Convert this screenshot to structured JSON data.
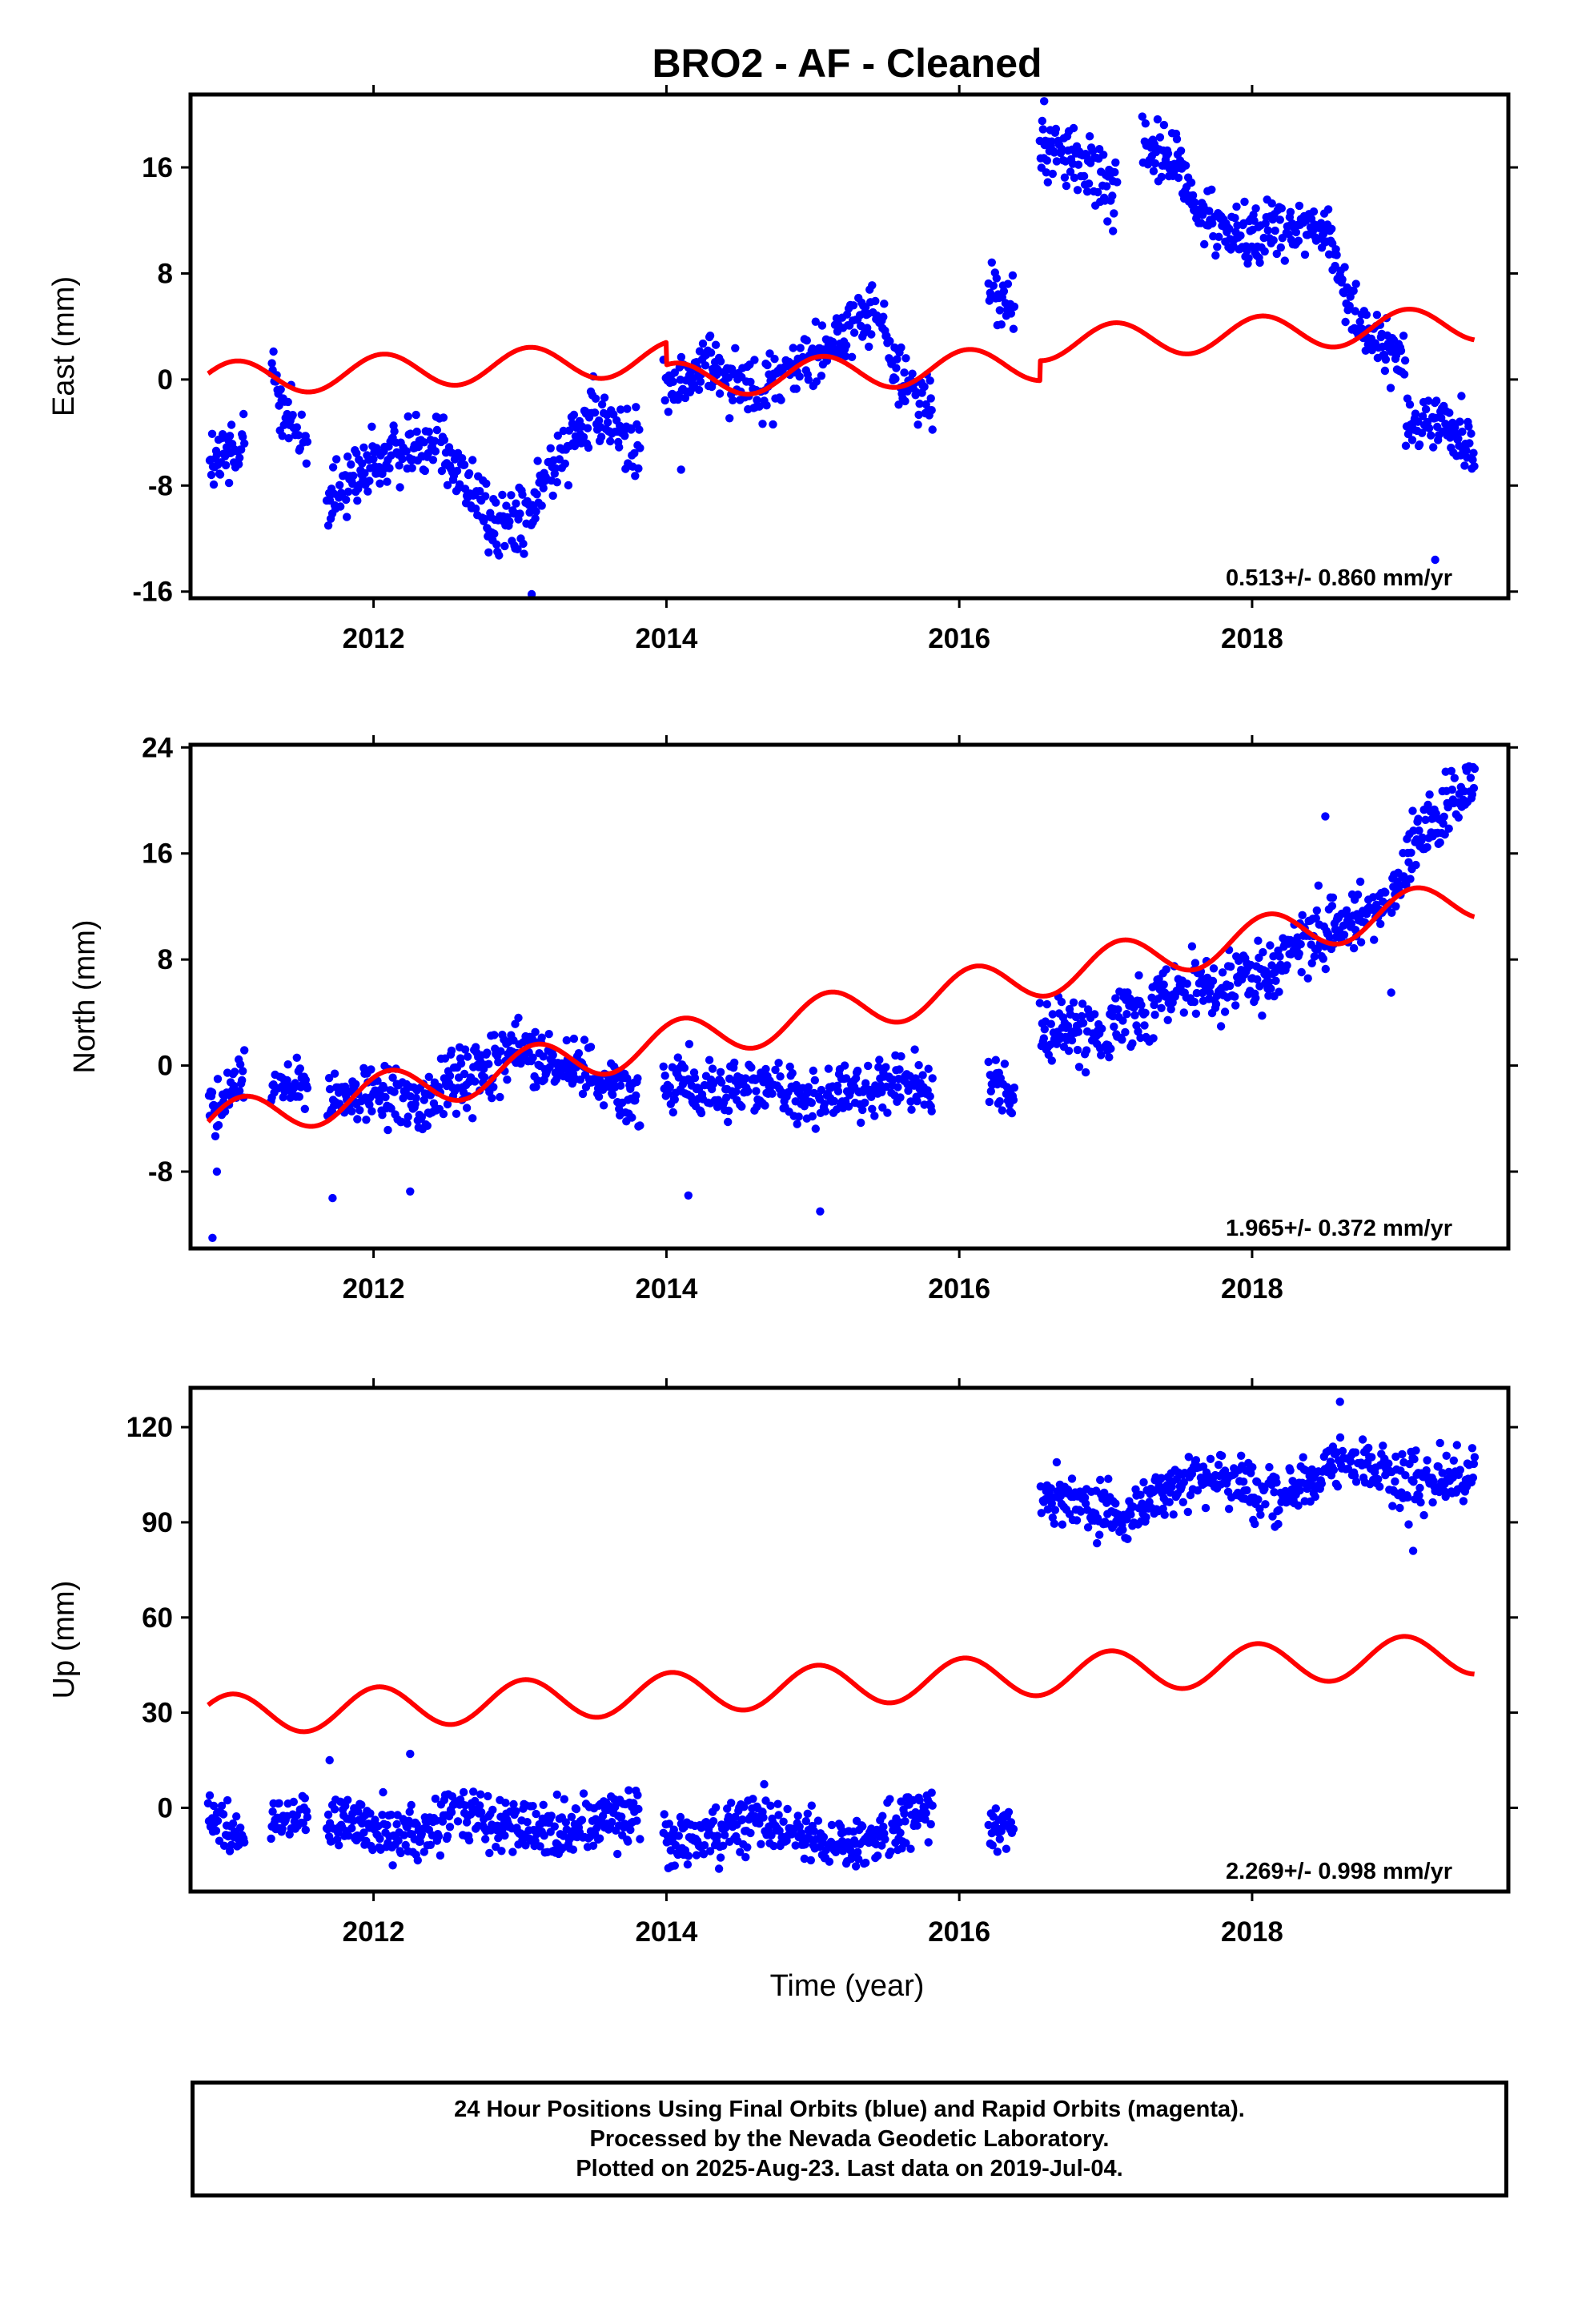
{
  "title": "BRO2  - AF - Cleaned",
  "xlabel": "Time (year)",
  "footer": {
    "line1": "24 Hour Positions Using Final Orbits (blue) and Rapid Orbits (magenta).",
    "line2": "Processed by the Nevada Geodetic Laboratory.",
    "line3": "Plotted on 2025-Aug-23. Last data on 2019-Jul-04."
  },
  "colors": {
    "data": "#0000ff",
    "model": "#ff0000",
    "frame": "#000000"
  },
  "chart_data": [
    {
      "type": "scatter",
      "panel": "east",
      "ylabel": "East (mm)",
      "xlim": [
        2010.75,
        2019.75
      ],
      "ylim": [
        -16.5,
        21.5
      ],
      "xticks": [
        2012,
        2014,
        2016,
        2018
      ],
      "yticks": [
        -16,
        -8,
        0,
        8,
        16
      ],
      "ytick_labels": [
        "-16",
        "-8",
        "0",
        "8",
        "16"
      ],
      "rate": "0.513+/- 0.860 mm/yr",
      "model": {
        "offset": 0.0,
        "trend": 0.513,
        "amplitude": 1.3,
        "phase": 0.35,
        "steps": [
          [
            2014.0,
            -1.7
          ],
          [
            2016.55,
            1.5
          ]
        ]
      },
      "segments": [
        {
          "start": 2010.87,
          "end": 2011.12,
          "points": [
            [
              2010.87,
              -6.5
            ],
            [
              2011.0,
              -5.8
            ],
            [
              2011.12,
              -3.8
            ]
          ],
          "noise": 1.3
        },
        {
          "start": 2011.3,
          "end": 2011.55,
          "points": [
            [
              2011.3,
              0.5
            ],
            [
              2011.42,
              -2.8
            ],
            [
              2011.55,
              -5.5
            ]
          ],
          "noise": 1.3
        },
        {
          "start": 2011.68,
          "end": 2013.82,
          "points": [
            [
              2011.68,
              -9.5
            ],
            [
              2012.0,
              -6.5
            ],
            [
              2012.3,
              -4.8
            ],
            [
              2012.45,
              -4.0
            ],
            [
              2012.6,
              -7.5
            ],
            [
              2012.85,
              -11.0
            ],
            [
              2013.05,
              -10.8
            ],
            [
              2013.2,
              -7.0
            ],
            [
              2013.4,
              -3.0
            ],
            [
              2013.6,
              -3.5
            ],
            [
              2013.82,
              -5.2
            ]
          ],
          "noise": 1.3
        },
        {
          "start": 2013.98,
          "end": 2015.82,
          "points": [
            [
              2013.98,
              -1.0
            ],
            [
              2014.3,
              1.2
            ],
            [
              2014.6,
              -0.8
            ],
            [
              2014.9,
              0.8
            ],
            [
              2015.2,
              3.5
            ],
            [
              2015.42,
              5.5
            ],
            [
              2015.6,
              0.2
            ],
            [
              2015.82,
              -2.3
            ]
          ],
          "noise": 1.1
        },
        {
          "start": 2016.2,
          "end": 2016.38,
          "points": [
            [
              2016.2,
              7.0
            ],
            [
              2016.38,
              5.0
            ]
          ],
          "noise": 1.0
        },
        {
          "start": 2016.55,
          "end": 2017.08,
          "points": [
            [
              2016.55,
              18.0
            ],
            [
              2016.8,
              16.5
            ],
            [
              2017.08,
              14.5
            ]
          ],
          "noise": 1.1
        },
        {
          "start": 2017.25,
          "end": 2018.55,
          "points": [
            [
              2017.25,
              17.5
            ],
            [
              2017.5,
              16.5
            ],
            [
              2017.62,
              12.5
            ],
            [
              2017.9,
              11.0
            ],
            [
              2018.2,
              11.5
            ],
            [
              2018.55,
              11.0
            ]
          ],
          "noise": 1.1
        },
        {
          "start": 2018.55,
          "end": 2019.05,
          "points": [
            [
              2018.55,
              9.0
            ],
            [
              2018.8,
              3.0
            ],
            [
              2019.05,
              1.5
            ]
          ],
          "noise": 1.1
        },
        {
          "start": 2019.05,
          "end": 2019.52,
          "points": [
            [
              2019.05,
              -3.5
            ],
            [
              2019.3,
              -3.0
            ],
            [
              2019.52,
              -5.5
            ]
          ],
          "noise": 1.1
        }
      ],
      "outliers": [
        [
          2013.08,
          -16.2
        ],
        [
          2019.25,
          -13.6
        ],
        [
          2014.1,
          -6.8
        ],
        [
          2016.58,
          21.0
        ],
        [
          2017.05,
          11.2
        ]
      ]
    },
    {
      "type": "scatter",
      "panel": "north",
      "ylabel": "North (mm)",
      "xlim": [
        2010.75,
        2019.75
      ],
      "ylim": [
        -13.8,
        24.2
      ],
      "xticks": [
        2012,
        2014,
        2016,
        2018
      ],
      "yticks": [
        -8,
        0,
        8,
        16,
        24
      ],
      "ytick_labels": [
        "-8",
        "0",
        "8",
        "16",
        "24"
      ],
      "rate": "1.965+/- 0.372 mm/yr",
      "model": {
        "offset": -4.4,
        "trend": 1.965,
        "amplitude": 1.6,
        "phase": 0.1,
        "steps": []
      },
      "segments": [
        {
          "start": 2010.87,
          "end": 2011.12,
          "points": [
            [
              2010.87,
              -3.0
            ],
            [
              2011.0,
              -2.0
            ],
            [
              2011.12,
              -1.0
            ]
          ],
          "noise": 1.0
        },
        {
          "start": 2011.3,
          "end": 2011.55,
          "points": [
            [
              2011.3,
              -1.0
            ],
            [
              2011.55,
              -2.0
            ]
          ],
          "noise": 1.0
        },
        {
          "start": 2011.68,
          "end": 2013.82,
          "points": [
            [
              2011.68,
              -3.0
            ],
            [
              2012.0,
              -2.0
            ],
            [
              2012.3,
              -3.0
            ],
            [
              2012.6,
              -1.0
            ],
            [
              2012.95,
              1.0
            ],
            [
              2013.2,
              0.5
            ],
            [
              2013.5,
              -0.5
            ],
            [
              2013.82,
              -2.5
            ]
          ],
          "noise": 1.2
        },
        {
          "start": 2013.98,
          "end": 2015.82,
          "points": [
            [
              2013.98,
              -1.0
            ],
            [
              2014.3,
              -2.0
            ],
            [
              2014.6,
              -1.5
            ],
            [
              2014.9,
              -2.5
            ],
            [
              2015.2,
              -2.5
            ],
            [
              2015.5,
              -1.5
            ],
            [
              2015.82,
              -1.5
            ]
          ],
          "noise": 1.2
        },
        {
          "start": 2016.2,
          "end": 2016.38,
          "points": [
            [
              2016.2,
              -1.5
            ],
            [
              2016.38,
              -2.0
            ]
          ],
          "noise": 1.0
        },
        {
          "start": 2016.55,
          "end": 2019.52,
          "points": [
            [
              2016.55,
              3.0
            ],
            [
              2016.9,
              2.5
            ],
            [
              2017.2,
              3.5
            ],
            [
              2017.5,
              6.0
            ],
            [
              2017.8,
              5.5
            ],
            [
              2018.1,
              7.0
            ],
            [
              2018.4,
              9.5
            ],
            [
              2018.7,
              11.0
            ],
            [
              2018.95,
              12.5
            ],
            [
              2019.1,
              17.0
            ],
            [
              2019.3,
              19.5
            ],
            [
              2019.52,
              21.5
            ]
          ],
          "noise": 1.2
        }
      ],
      "outliers": [
        [
          2010.9,
          -13.0
        ],
        [
          2011.72,
          -10.0
        ],
        [
          2012.25,
          -9.5
        ],
        [
          2014.15,
          -9.8
        ],
        [
          2015.05,
          -11.0
        ],
        [
          2018.5,
          18.8
        ],
        [
          2018.95,
          5.5
        ],
        [
          2010.93,
          -8.0
        ]
      ]
    },
    {
      "type": "scatter",
      "panel": "up",
      "ylabel": "Up (mm)",
      "xlim": [
        2010.75,
        2019.75
      ],
      "ylim": [
        -26.4,
        132.4
      ],
      "xticks": [
        2012,
        2014,
        2016,
        2018
      ],
      "yticks": [
        0,
        30,
        60,
        90,
        120
      ],
      "ytick_labels": [
        "0",
        "30",
        "60",
        "90",
        "120"
      ],
      "rate": "2.269+/- 0.998 mm/yr",
      "model": {
        "offset": 29.0,
        "trend": 2.269,
        "amplitude": 6.5,
        "phase": 0.55,
        "steps": []
      },
      "segments": [
        {
          "start": 2010.87,
          "end": 2011.12,
          "points": [
            [
              2010.87,
              -5.0
            ],
            [
              2011.12,
              -10.0
            ]
          ],
          "noise": 4.5
        },
        {
          "start": 2011.3,
          "end": 2011.55,
          "points": [
            [
              2011.3,
              -3.0
            ],
            [
              2011.55,
              -2.0
            ]
          ],
          "noise": 4.5
        },
        {
          "start": 2011.68,
          "end": 2013.82,
          "points": [
            [
              2011.68,
              -3.0
            ],
            [
              2012.2,
              -10.0
            ],
            [
              2012.6,
              -1.0
            ],
            [
              2013.0,
              -7.0
            ],
            [
              2013.4,
              -6.0
            ],
            [
              2013.82,
              -1.0
            ]
          ],
          "noise": 4.5
        },
        {
          "start": 2013.98,
          "end": 2015.82,
          "points": [
            [
              2013.98,
              -10.0
            ],
            [
              2014.3,
              -10.0
            ],
            [
              2014.6,
              -4.0
            ],
            [
              2014.9,
              -7.0
            ],
            [
              2015.2,
              -13.0
            ],
            [
              2015.5,
              -8.0
            ],
            [
              2015.82,
              0.0
            ]
          ],
          "noise": 4.5
        },
        {
          "start": 2016.2,
          "end": 2016.38,
          "points": [
            [
              2016.2,
              -7.0
            ],
            [
              2016.38,
              -3.0
            ]
          ],
          "noise": 4.5
        },
        {
          "start": 2016.55,
          "end": 2019.52,
          "points": [
            [
              2016.55,
              98.0
            ],
            [
              2016.9,
              95.0
            ],
            [
              2017.1,
              90.0
            ],
            [
              2017.3,
              97.0
            ],
            [
              2017.6,
              105.0
            ],
            [
              2017.9,
              102.0
            ],
            [
              2018.1,
              98.0
            ],
            [
              2018.4,
              103.0
            ],
            [
              2018.7,
              110.0
            ],
            [
              2019.0,
              104.0
            ],
            [
              2019.3,
              103.0
            ],
            [
              2019.52,
              108.0
            ]
          ],
          "noise": 4.5
        }
      ],
      "outliers": [
        [
          2011.7,
          15.0
        ],
        [
          2012.25,
          17.0
        ],
        [
          2018.6,
          128.0
        ],
        [
          2019.1,
          81.0
        ]
      ]
    }
  ]
}
